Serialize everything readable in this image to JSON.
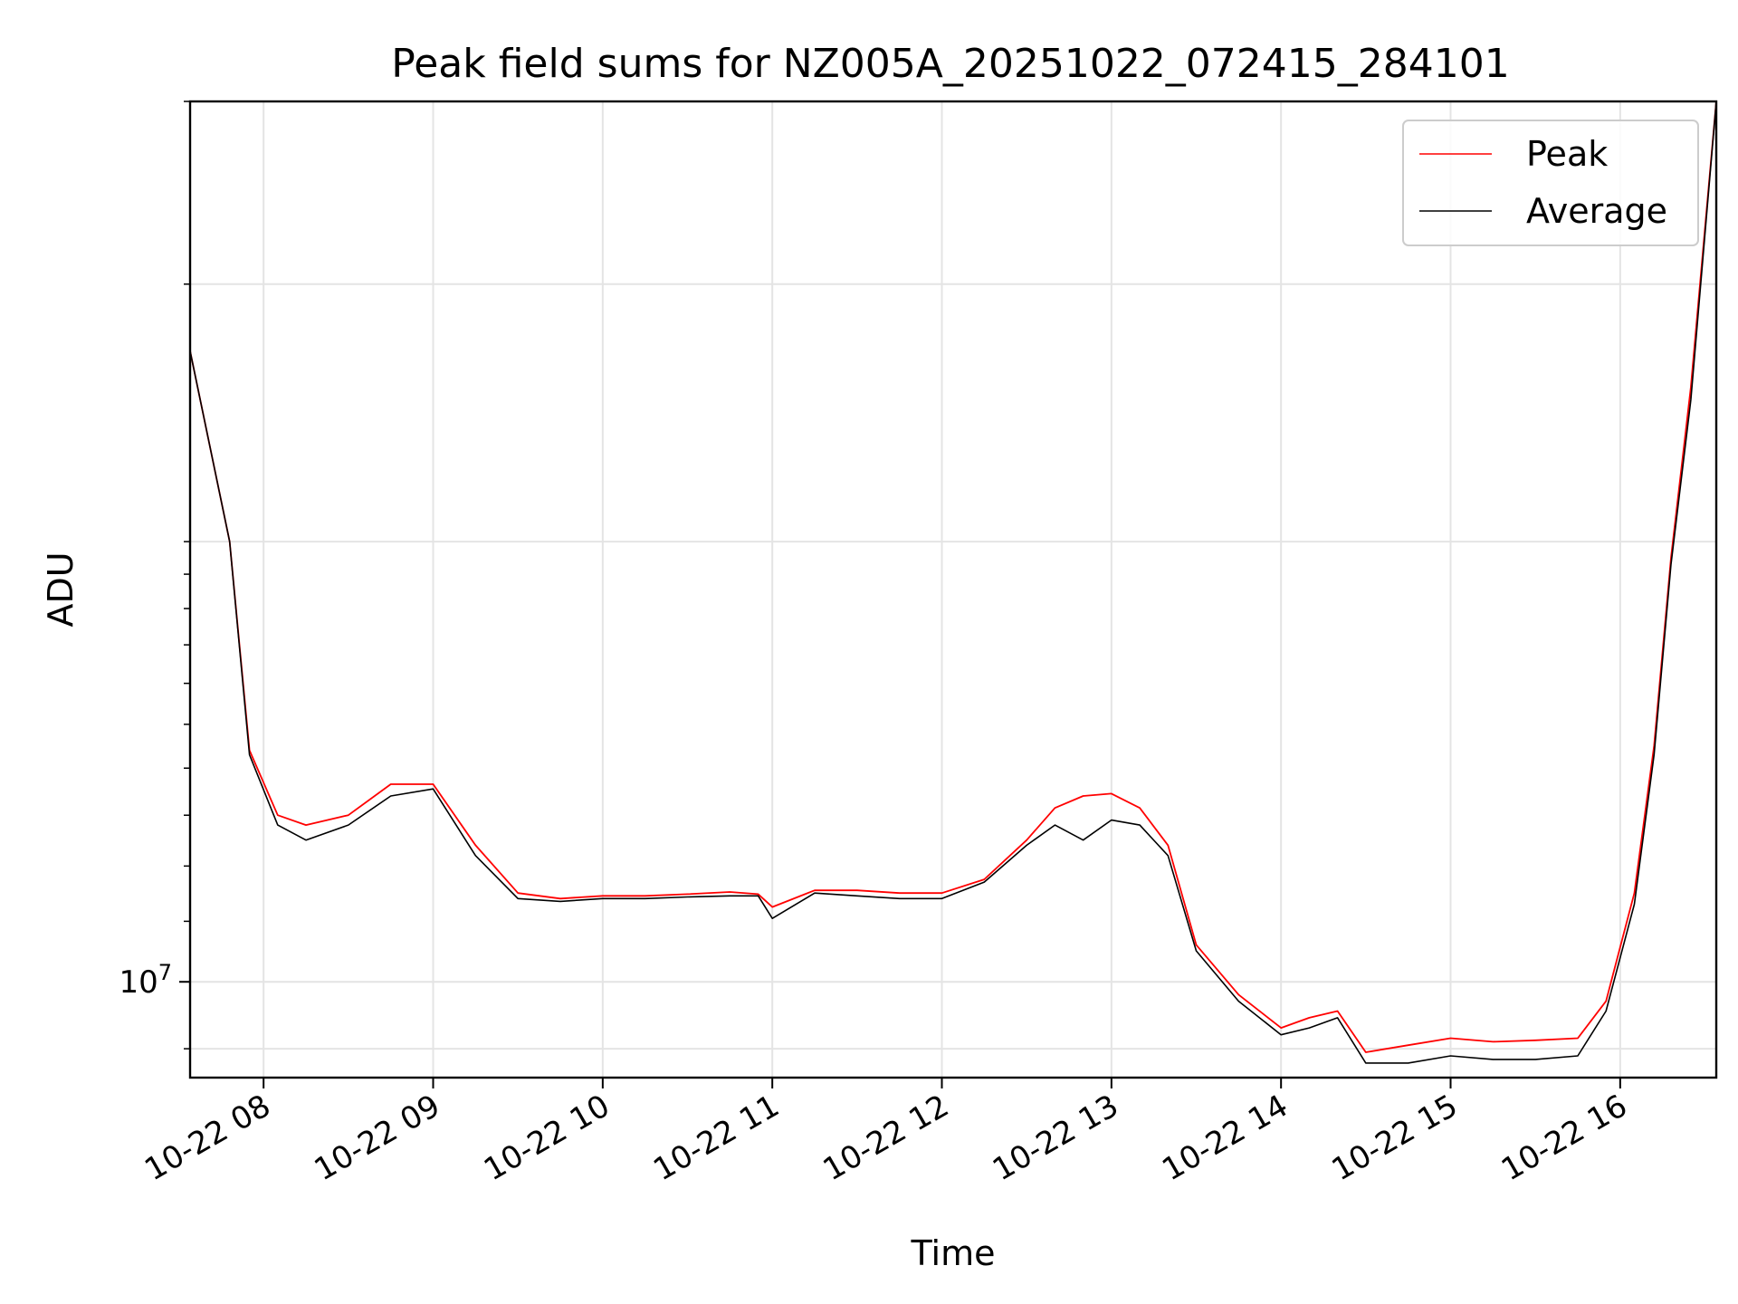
{
  "chart_data": {
    "type": "line",
    "title": "Peak field sums for NZ005A_20251022_072415_284101",
    "xlabel": "Time",
    "ylabel": "ADU",
    "yscale": "log",
    "xlim": [
      "2025-10-22 07:34",
      "2025-10-22 16:34"
    ],
    "ylim": [
      8600000,
      40000000
    ],
    "x_ticks": [
      "10-22 08",
      "10-22 09",
      "10-22 10",
      "10-22 11",
      "10-22 12",
      "10-22 13",
      "10-22 14",
      "10-22 15",
      "10-22 16"
    ],
    "y_ticks": [
      {
        "label_base": "10",
        "label_exp": "7",
        "value": 10000000
      }
    ],
    "grid": true,
    "legend_position": "top-right",
    "colors": {
      "peak": "#ff0000",
      "average": "#000000",
      "grid": "#e4e4e4"
    },
    "x": [
      "07:34",
      "07:48",
      "07:55",
      "08:05",
      "08:15",
      "08:30",
      "08:45",
      "09:00",
      "09:15",
      "09:30",
      "09:45",
      "10:00",
      "10:15",
      "10:30",
      "10:45",
      "10:55",
      "11:00",
      "11:15",
      "11:30",
      "11:45",
      "12:00",
      "12:15",
      "12:30",
      "12:40",
      "12:50",
      "13:00",
      "13:10",
      "13:20",
      "13:30",
      "13:45",
      "14:00",
      "14:10",
      "14:20",
      "14:30",
      "14:45",
      "15:00",
      "15:15",
      "15:30",
      "15:45",
      "15:55",
      "16:05",
      "16:12",
      "16:18",
      "16:25",
      "16:34"
    ],
    "series": [
      {
        "name": "Peak",
        "values": [
          27000000,
          20000000,
          14400000,
          13000000,
          12800000,
          13000000,
          13650000,
          13650000,
          12400000,
          11500000,
          11400000,
          11450000,
          11450000,
          11480000,
          11520000,
          11480000,
          11250000,
          11550000,
          11550000,
          11500000,
          11500000,
          11750000,
          12500000,
          13150000,
          13400000,
          13450000,
          13150000,
          12400000,
          10600000,
          9800000,
          9300000,
          9450000,
          9550000,
          8950000,
          9050000,
          9150000,
          9100000,
          9120000,
          9150000,
          9700000,
          11500000,
          14500000,
          19500000,
          25500000,
          40000000
        ]
      },
      {
        "name": "Average",
        "values": [
          27000000,
          20000000,
          14300000,
          12800000,
          12500000,
          12800000,
          13400000,
          13550000,
          12200000,
          11400000,
          11350000,
          11400000,
          11400000,
          11430000,
          11450000,
          11450000,
          11050000,
          11500000,
          11450000,
          11400000,
          11400000,
          11700000,
          12400000,
          12800000,
          12500000,
          12900000,
          12800000,
          12200000,
          10500000,
          9700000,
          9200000,
          9300000,
          9450000,
          8800000,
          8800000,
          8900000,
          8850000,
          8850000,
          8900000,
          9550000,
          11300000,
          14300000,
          19300000,
          25000000,
          40000000
        ]
      }
    ]
  }
}
